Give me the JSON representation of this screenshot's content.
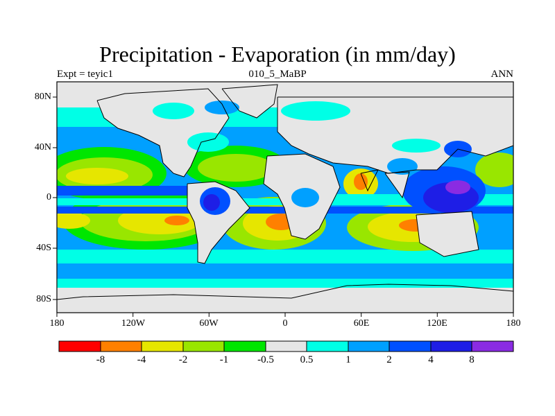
{
  "title": "Precipitation - Evaporation (in mm/day)",
  "subtitle_left": "Expt = teyic1",
  "subtitle_center": "010_5_MaBP",
  "subtitle_right": "ANN",
  "map": {
    "lon_ticks": [
      "180",
      "120W",
      "60W",
      "0",
      "60E",
      "120E",
      "180"
    ],
    "lat_ticks": [
      "80N",
      "40N",
      "0",
      "40S",
      "80S"
    ]
  },
  "colorbar": {
    "labels": [
      "-8",
      "-4",
      "-2",
      "-1",
      "-0.5",
      "0.5",
      "1",
      "2",
      "4",
      "8"
    ],
    "colors": [
      "#ff0000",
      "#ff8000",
      "#e6e600",
      "#99e600",
      "#00e600",
      "#e6e6e6",
      "#00ffe6",
      "#00a0ff",
      "#0050ff",
      "#1e1ee6",
      "#8a2be2"
    ]
  }
}
